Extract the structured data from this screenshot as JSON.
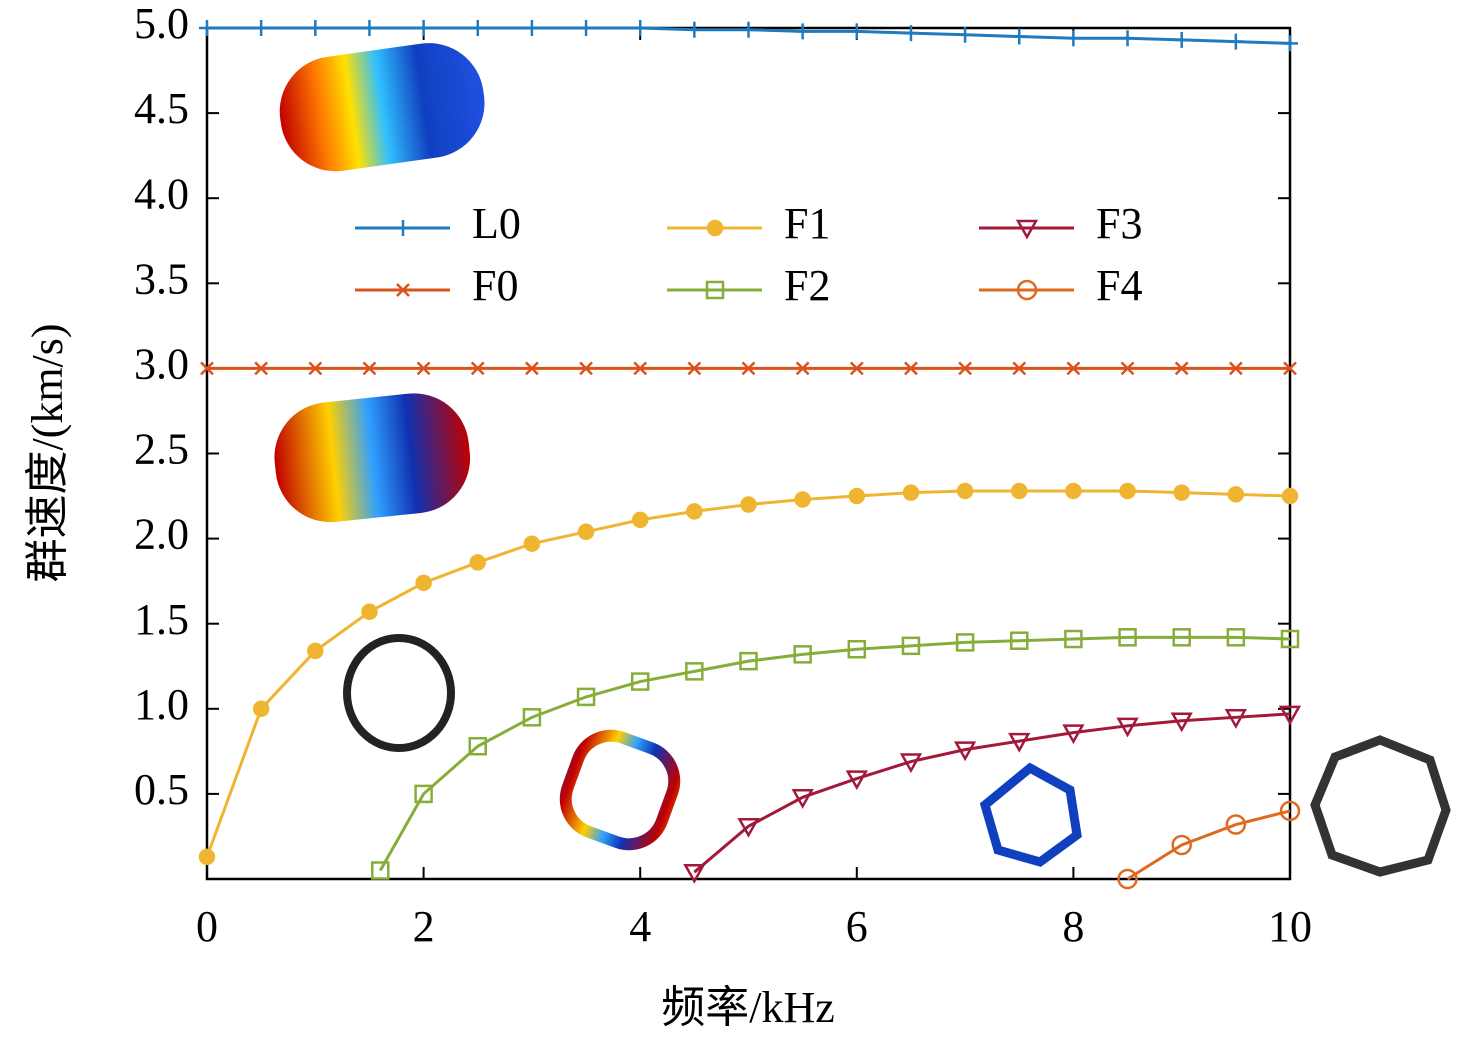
{
  "chart_data": {
    "type": "line",
    "xlabel": "频率/kHz",
    "ylabel": "群速度/(km/s)",
    "xlim": [
      0,
      10
    ],
    "ylim": [
      0,
      5
    ],
    "xticks": [
      0,
      2,
      4,
      6,
      8,
      10
    ],
    "yticks": [
      0.5,
      {
        "value": 1,
        "label": "1.0"
      },
      1.5,
      {
        "value": 2,
        "label": "2.0"
      },
      2.5,
      {
        "value": 3,
        "label": "3.0"
      },
      3.5,
      {
        "value": 4,
        "label": "4.0"
      },
      4.5,
      {
        "value": 5,
        "label": "5.0"
      }
    ],
    "legend": "upper center",
    "series": [
      {
        "name": "L0",
        "color": "#1f7bbf",
        "marker": "plus",
        "x": [
          0,
          0.5,
          1,
          1.5,
          2,
          2.5,
          3,
          3.5,
          4,
          4.5,
          5,
          5.5,
          6,
          6.5,
          7,
          7.5,
          8,
          8.5,
          9,
          9.5,
          10
        ],
        "values": [
          5.0,
          5.0,
          5.0,
          5.0,
          5.0,
          5.0,
          5.0,
          5.0,
          5.0,
          4.99,
          4.99,
          4.98,
          4.98,
          4.97,
          4.96,
          4.95,
          4.94,
          4.94,
          4.93,
          4.92,
          4.91
        ]
      },
      {
        "name": "F0",
        "color": "#d9531a",
        "marker": "cross",
        "x": [
          0,
          0.5,
          1,
          1.5,
          2,
          2.5,
          3,
          3.5,
          4,
          4.5,
          5,
          5.5,
          6,
          6.5,
          7,
          7.5,
          8,
          8.5,
          9,
          9.5,
          10
        ],
        "values": [
          3,
          3,
          3,
          3,
          3,
          3,
          3,
          3,
          3,
          3,
          3,
          3,
          3,
          3,
          3,
          3,
          3,
          3,
          3,
          3,
          3
        ]
      },
      {
        "name": "F1",
        "color": "#f0b530",
        "marker": "dot",
        "x": [
          0,
          0.5,
          1,
          1.5,
          2,
          2.5,
          3,
          3.5,
          4,
          4.5,
          5,
          5.5,
          6,
          6.5,
          7,
          7.5,
          8,
          8.5,
          9,
          9.5,
          10
        ],
        "values": [
          0.13,
          1.0,
          1.34,
          1.57,
          1.74,
          1.86,
          1.97,
          2.04,
          2.11,
          2.16,
          2.2,
          2.23,
          2.25,
          2.27,
          2.28,
          2.28,
          2.28,
          2.28,
          2.27,
          2.26,
          2.25
        ]
      },
      {
        "name": "F2",
        "color": "#86ad3a",
        "marker": "square",
        "x": [
          1.6,
          2,
          2.5,
          3,
          3.5,
          4,
          4.5,
          5,
          5.5,
          6,
          6.5,
          7,
          7.5,
          8,
          8.5,
          9,
          9.5,
          10
        ],
        "values": [
          0.05,
          0.5,
          0.78,
          0.95,
          1.07,
          1.16,
          1.22,
          1.28,
          1.32,
          1.35,
          1.37,
          1.39,
          1.4,
          1.41,
          1.42,
          1.42,
          1.42,
          1.41
        ]
      },
      {
        "name": "F3",
        "color": "#a2193a",
        "marker": "triangle-down",
        "x": [
          4.5,
          5,
          5.5,
          6,
          6.5,
          7,
          7.5,
          8,
          8.5,
          9,
          9.5,
          10
        ],
        "values": [
          0.04,
          0.31,
          0.48,
          0.59,
          0.69,
          0.76,
          0.81,
          0.86,
          0.9,
          0.93,
          0.95,
          0.97
        ]
      },
      {
        "name": "F4",
        "color": "#de6a22",
        "marker": "circle",
        "x": [
          8.5,
          9,
          9.5,
          10
        ],
        "values": [
          0.0,
          0.2,
          0.32,
          0.4
        ]
      }
    ]
  }
}
